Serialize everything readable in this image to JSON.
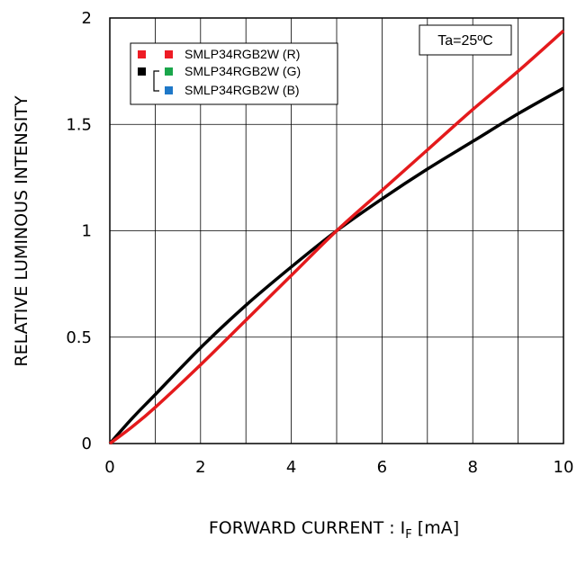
{
  "chart_data": {
    "type": "line",
    "title": "",
    "xlabel": "FORWARD CURRENT : I",
    "xlabel_sub": "F",
    "xlabel_unit": " [mA]",
    "ylabel": "RELATIVE LUMINOUS INTENSITY",
    "xlim": [
      0,
      10
    ],
    "ylim": [
      0,
      2
    ],
    "x_ticks": [
      "0",
      "2",
      "4",
      "6",
      "8",
      "10"
    ],
    "y_ticks": [
      "0",
      "0.5",
      "1",
      "1.5",
      "2"
    ],
    "grid": true,
    "legend_position": "top-left",
    "annotation": "Ta=25ºC",
    "legend": [
      {
        "label": "SMLP34RGB2W (R)",
        "color": "#ee1c25",
        "line_color": "#ee1c25"
      },
      {
        "label": "SMLP34RGB2W (G)",
        "color": "#1aa64b",
        "line_color": "#000000"
      },
      {
        "label": "SMLP34RGB2W (B)",
        "color": "#1f78c8",
        "line_color": "#000000"
      }
    ],
    "series": [
      {
        "name": "SMLP34RGB2W (R)",
        "color": "#e41a1c",
        "x": [
          0,
          0.5,
          1,
          2,
          3,
          4,
          5,
          6,
          7,
          8,
          9,
          10
        ],
        "y": [
          0,
          0.08,
          0.17,
          0.37,
          0.58,
          0.79,
          1.0,
          1.19,
          1.38,
          1.57,
          1.75,
          1.94
        ]
      },
      {
        "name": "SMLP34RGB2W (G) / (B)",
        "color": "#000000",
        "x": [
          0,
          0.5,
          1,
          2,
          3,
          4,
          5,
          6,
          7,
          8,
          9,
          10
        ],
        "y": [
          0,
          0.12,
          0.23,
          0.45,
          0.65,
          0.83,
          1.0,
          1.15,
          1.29,
          1.42,
          1.55,
          1.67
        ]
      }
    ]
  }
}
